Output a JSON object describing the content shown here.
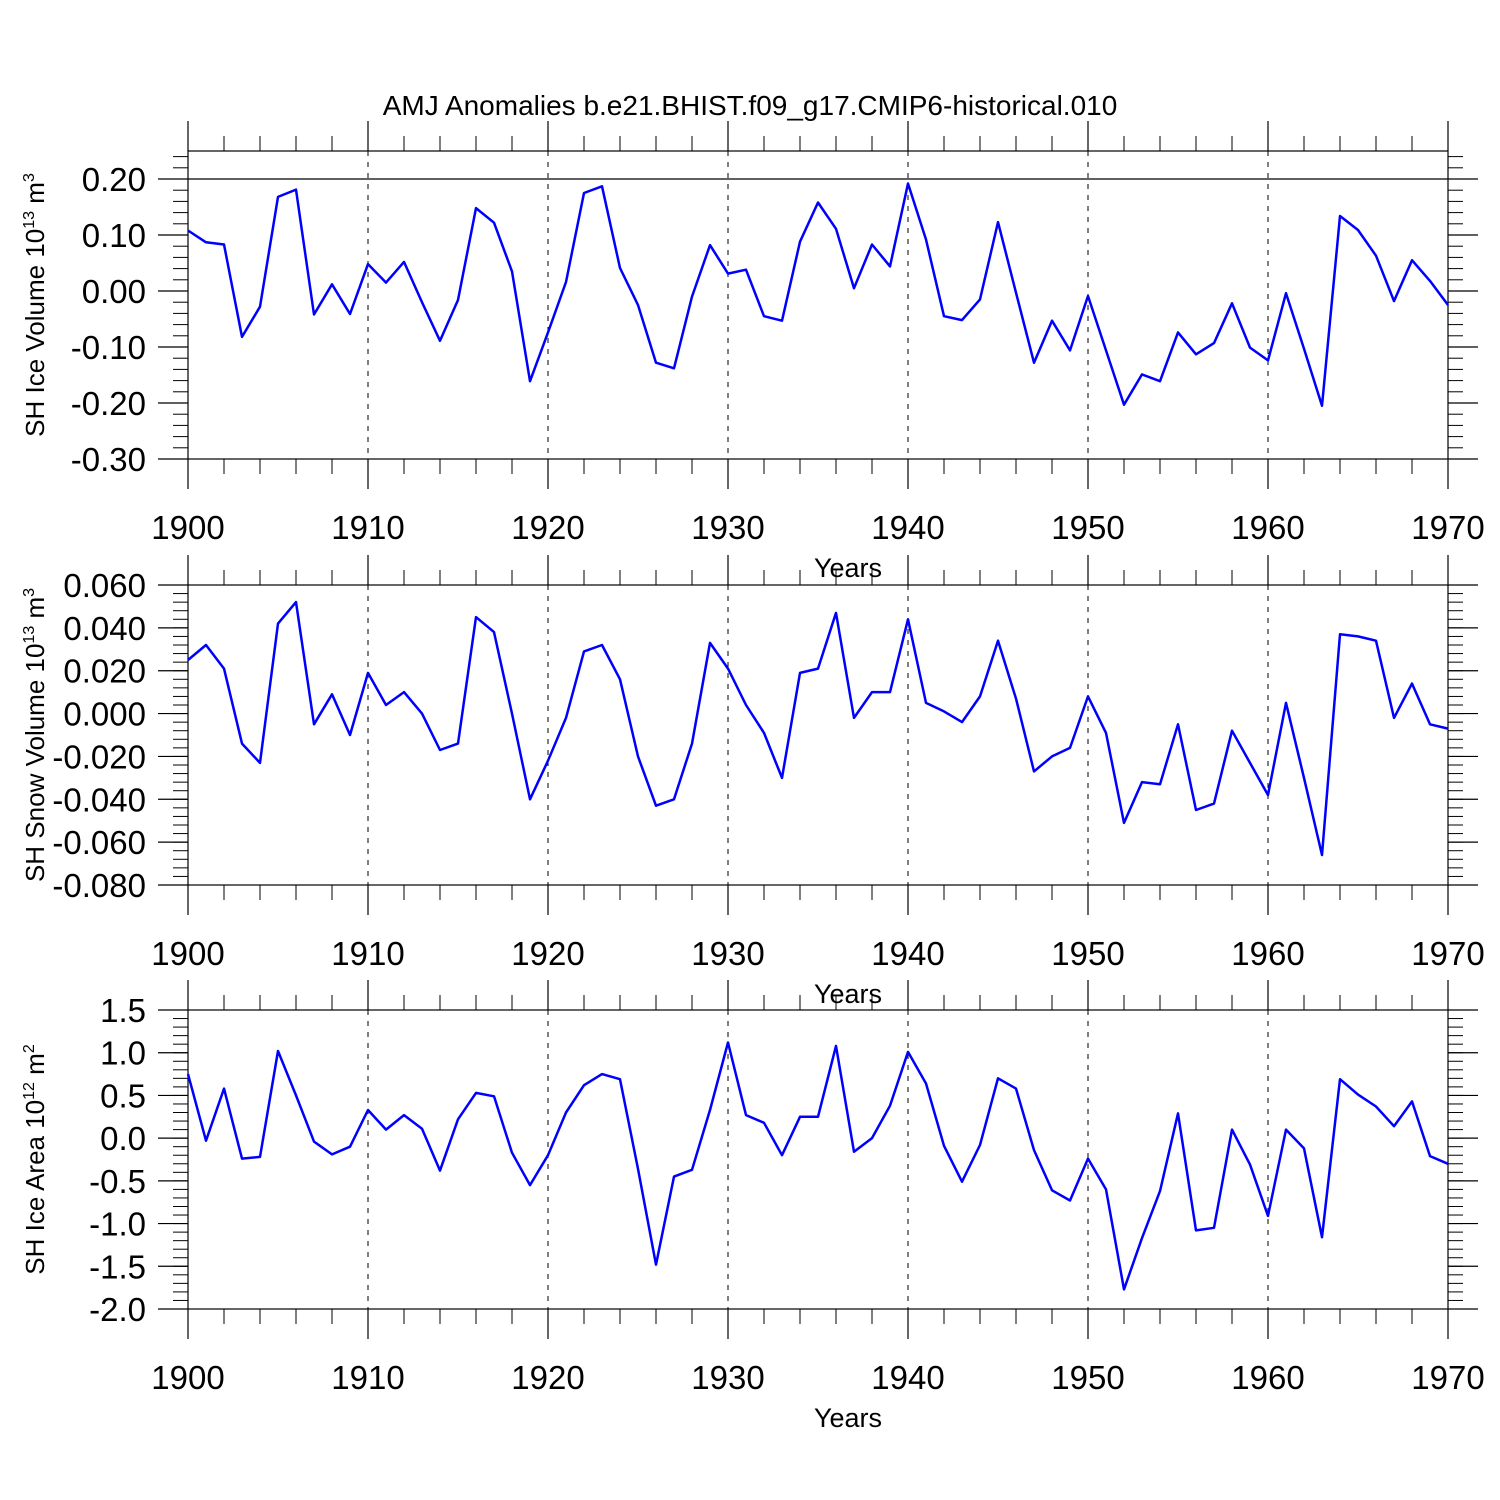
{
  "title": "AMJ Anomalies b.e21.BHIST.f09_g17.CMIP6-historical.010",
  "colors": {
    "line": "#0000ff",
    "axis": "#000000",
    "grid": "#000000",
    "background": "#ffffff"
  },
  "chart_data": [
    {
      "type": "line",
      "xlabel": "Years",
      "ylabel": {
        "text": "SH Ice Volume 10",
        "sup": "13",
        "unit": " m",
        "unit_sup": "3"
      },
      "xlim": [
        1900,
        1970
      ],
      "ylim": [
        -0.3,
        0.25
      ],
      "xticks": [
        1900,
        1910,
        1920,
        1930,
        1940,
        1950,
        1960,
        1970
      ],
      "xtick_labels": [
        "1900",
        "1910",
        "1920",
        "1930",
        "1940",
        "1950",
        "1960",
        "1970"
      ],
      "yticks": [
        0.2,
        0.1,
        0.0,
        -0.1,
        -0.2,
        -0.3
      ],
      "ytick_labels": [
        "0.20",
        "0.10",
        "0.00",
        "-0.10",
        "-0.20",
        "-0.30"
      ],
      "x_grid": "dashed vertical at decades",
      "series": [
        {
          "name": "SH Ice Volume",
          "x": [
            1900,
            1901,
            1902,
            1903,
            1904,
            1905,
            1906,
            1907,
            1908,
            1909,
            1910,
            1911,
            1912,
            1913,
            1914,
            1915,
            1916,
            1917,
            1918,
            1919,
            1920,
            1921,
            1922,
            1923,
            1924,
            1925,
            1926,
            1927,
            1928,
            1929,
            1930,
            1931,
            1932,
            1933,
            1934,
            1935,
            1936,
            1937,
            1938,
            1939,
            1940,
            1941,
            1942,
            1943,
            1944,
            1945,
            1946,
            1947,
            1948,
            1949,
            1950,
            1951,
            1952,
            1953,
            1954,
            1955,
            1956,
            1957,
            1958,
            1959,
            1960,
            1961,
            1962,
            1963,
            1964,
            1965,
            1966,
            1967,
            1968,
            1969,
            1970
          ],
          "values": [
            0.108,
            0.087,
            0.083,
            -0.082,
            -0.028,
            0.168,
            0.181,
            -0.042,
            0.012,
            -0.041,
            0.048,
            0.015,
            0.052,
            -0.02,
            -0.089,
            -0.016,
            0.148,
            0.122,
            0.035,
            -0.161,
            -0.074,
            0.016,
            0.175,
            0.187,
            0.041,
            -0.025,
            -0.128,
            -0.138,
            -0.01,
            0.082,
            0.031,
            0.038,
            -0.045,
            -0.053,
            0.088,
            0.158,
            0.111,
            0.005,
            0.083,
            0.044,
            0.192,
            0.092,
            -0.045,
            -0.052,
            -0.015,
            0.123,
            -0.003,
            -0.128,
            -0.053,
            -0.106,
            -0.009,
            -0.106,
            -0.203,
            -0.149,
            -0.161,
            -0.074,
            -0.113,
            -0.093,
            -0.022,
            -0.101,
            -0.124,
            -0.004,
            -0.103,
            -0.205,
            0.134,
            0.109,
            0.063,
            -0.018,
            0.055,
            0.018,
            -0.025
          ]
        }
      ]
    },
    {
      "type": "line",
      "xlabel": "Years",
      "ylabel": {
        "text": "SH Snow Volume 10",
        "sup": "13",
        "unit": " m",
        "unit_sup": "3"
      },
      "xlim": [
        1900,
        1970
      ],
      "ylim": [
        -0.08,
        0.06
      ],
      "xticks": [
        1900,
        1910,
        1920,
        1930,
        1940,
        1950,
        1960,
        1970
      ],
      "xtick_labels": [
        "1900",
        "1910",
        "1920",
        "1930",
        "1940",
        "1950",
        "1960",
        "1970"
      ],
      "yticks": [
        0.06,
        0.04,
        0.02,
        0.0,
        -0.02,
        -0.04,
        -0.06,
        -0.08
      ],
      "ytick_labels": [
        "0.060",
        "0.040",
        "0.020",
        "0.000",
        "-0.020",
        "-0.040",
        "-0.060",
        "-0.080"
      ],
      "x_grid": "dashed vertical at decades",
      "series": [
        {
          "name": "SH Snow Volume",
          "x": [
            1900,
            1901,
            1902,
            1903,
            1904,
            1905,
            1906,
            1907,
            1908,
            1909,
            1910,
            1911,
            1912,
            1913,
            1914,
            1915,
            1916,
            1917,
            1918,
            1919,
            1920,
            1921,
            1922,
            1923,
            1924,
            1925,
            1926,
            1927,
            1928,
            1929,
            1930,
            1931,
            1932,
            1933,
            1934,
            1935,
            1936,
            1937,
            1938,
            1939,
            1940,
            1941,
            1942,
            1943,
            1944,
            1945,
            1946,
            1947,
            1948,
            1949,
            1950,
            1951,
            1952,
            1953,
            1954,
            1955,
            1956,
            1957,
            1958,
            1959,
            1960,
            1961,
            1962,
            1963,
            1964,
            1965,
            1966,
            1967,
            1968,
            1969,
            1970
          ],
          "values": [
            0.025,
            0.032,
            0.021,
            -0.014,
            -0.023,
            0.042,
            0.052,
            -0.005,
            0.009,
            -0.01,
            0.019,
            0.004,
            0.01,
            0.0,
            -0.017,
            -0.014,
            0.045,
            0.038,
            0.0,
            -0.04,
            -0.022,
            -0.002,
            0.029,
            0.032,
            0.016,
            -0.02,
            -0.043,
            -0.04,
            -0.014,
            0.033,
            0.021,
            0.004,
            -0.009,
            -0.03,
            0.019,
            0.021,
            0.047,
            -0.002,
            0.01,
            0.01,
            0.044,
            0.005,
            0.001,
            -0.004,
            0.008,
            0.034,
            0.007,
            -0.027,
            -0.02,
            -0.016,
            0.008,
            -0.009,
            -0.051,
            -0.032,
            -0.033,
            -0.005,
            -0.045,
            -0.042,
            -0.008,
            -0.023,
            -0.038,
            0.005,
            -0.03,
            -0.066,
            0.037,
            0.036,
            0.034,
            -0.002,
            0.014,
            -0.005,
            -0.007
          ]
        }
      ]
    },
    {
      "type": "line",
      "xlabel": "Years",
      "ylabel": {
        "text": "SH Ice Area 10",
        "sup": "12",
        "unit": " m",
        "unit_sup": "2"
      },
      "xlim": [
        1900,
        1970
      ],
      "ylim": [
        -2.0,
        1.5
      ],
      "xticks": [
        1900,
        1910,
        1920,
        1930,
        1940,
        1950,
        1960,
        1970
      ],
      "xtick_labels": [
        "1900",
        "1910",
        "1920",
        "1930",
        "1940",
        "1950",
        "1960",
        "1970"
      ],
      "yticks": [
        1.5,
        1.0,
        0.5,
        0.0,
        -0.5,
        -1.0,
        -1.5,
        -2.0
      ],
      "ytick_labels": [
        "1.5",
        "1.0",
        "0.5",
        "0.0",
        "-0.5",
        "-1.0",
        "-1.5",
        "-2.0"
      ],
      "x_grid": "dashed vertical at decades",
      "series": [
        {
          "name": "SH Ice Area",
          "x": [
            1900,
            1901,
            1902,
            1903,
            1904,
            1905,
            1906,
            1907,
            1908,
            1909,
            1910,
            1911,
            1912,
            1913,
            1914,
            1915,
            1916,
            1917,
            1918,
            1919,
            1920,
            1921,
            1922,
            1923,
            1924,
            1925,
            1926,
            1927,
            1928,
            1929,
            1930,
            1931,
            1932,
            1933,
            1934,
            1935,
            1936,
            1937,
            1938,
            1939,
            1940,
            1941,
            1942,
            1943,
            1944,
            1945,
            1946,
            1947,
            1948,
            1949,
            1950,
            1951,
            1952,
            1953,
            1954,
            1955,
            1956,
            1957,
            1958,
            1959,
            1960,
            1961,
            1962,
            1963,
            1964,
            1965,
            1966,
            1967,
            1968,
            1969,
            1970
          ],
          "values": [
            0.75,
            -0.03,
            0.58,
            -0.24,
            -0.22,
            1.02,
            0.5,
            -0.04,
            -0.19,
            -0.1,
            0.33,
            0.1,
            0.27,
            0.11,
            -0.38,
            0.22,
            0.53,
            0.49,
            -0.17,
            -0.55,
            -0.2,
            0.3,
            0.62,
            0.75,
            0.69,
            -0.36,
            -1.48,
            -0.45,
            -0.37,
            0.33,
            1.12,
            0.27,
            0.18,
            -0.2,
            0.25,
            0.25,
            1.08,
            -0.16,
            0.0,
            0.38,
            1.01,
            0.64,
            -0.09,
            -0.51,
            -0.08,
            0.7,
            0.58,
            -0.14,
            -0.61,
            -0.73,
            -0.24,
            -0.6,
            -1.77,
            -1.17,
            -0.62,
            0.29,
            -1.08,
            -1.05,
            0.1,
            -0.31,
            -0.91,
            0.1,
            -0.12,
            -1.16,
            0.69,
            0.51,
            0.37,
            0.14,
            0.43,
            -0.21,
            -0.3
          ]
        }
      ]
    }
  ]
}
